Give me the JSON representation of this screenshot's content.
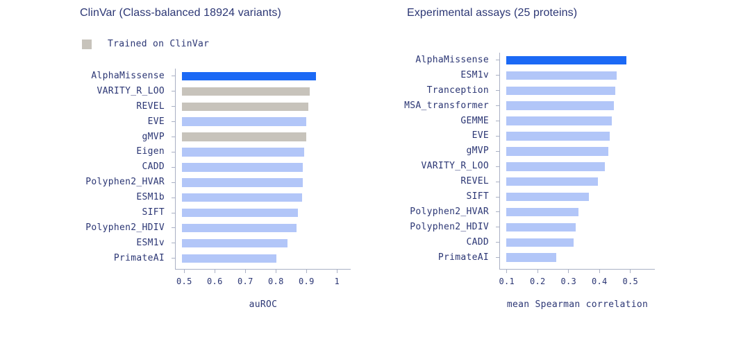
{
  "colors": {
    "accent_blue": "#1b69f5",
    "light_blue": "#b2c6f8",
    "trained_gray": "#c7c3bb",
    "text_navy": "#2b3674",
    "axis_line": "#a9b0c4",
    "background": "#ffffff"
  },
  "chart_data": [
    {
      "type": "bar",
      "orientation": "horizontal",
      "title": "ClinVar (Class-balanced 18924 variants)",
      "legend": [
        {
          "label": "Trained on ClinVar",
          "color_role": "trained"
        }
      ],
      "xlabel": "auROC",
      "xlim": [
        0.49,
        1.05
      ],
      "grid": false,
      "xticks": [
        0.5,
        0.6,
        0.7,
        0.8,
        0.9,
        1.0
      ],
      "xtick_labels": [
        "0.5",
        "0.6",
        "0.7",
        "0.8",
        "0.9",
        "1"
      ],
      "categories": [
        "AlphaMissense",
        "VARITY_R_LOO",
        "REVEL",
        "EVE",
        "gMVP",
        "Eigen",
        "CADD",
        "Polyphen2_HVAR",
        "ESM1b",
        "SIFT",
        "Polyphen2_HDIV",
        "ESM1v",
        "PrimateAI"
      ],
      "values": [
        0.93,
        0.911,
        0.905,
        0.899,
        0.899,
        0.892,
        0.888,
        0.888,
        0.886,
        0.873,
        0.868,
        0.837,
        0.801
      ],
      "bar_roles": [
        "highlight",
        "trained",
        "trained",
        "default",
        "trained",
        "default",
        "default",
        "default",
        "default",
        "default",
        "default",
        "default",
        "default"
      ]
    },
    {
      "type": "bar",
      "orientation": "horizontal",
      "title": "Experimental assays (25 proteins)",
      "legend": [],
      "xlabel": "mean Spearman correlation",
      "xlim": [
        0.1,
        0.58
      ],
      "grid": false,
      "xticks": [
        0.1,
        0.2,
        0.3,
        0.4,
        0.5
      ],
      "xtick_labels": [
        "0.1",
        "0.2",
        "0.3",
        "0.4",
        "0.5"
      ],
      "categories": [
        "AlphaMissense",
        "ESM1v",
        "Tranception",
        "MSA_transformer",
        "GEMME",
        "EVE",
        "gMVP",
        "VARITY_R_LOO",
        "REVEL",
        "SIFT",
        "Polyphen2_HVAR",
        "Polyphen2_HDIV",
        "CADD",
        "PrimateAI"
      ],
      "values": [
        0.486,
        0.455,
        0.451,
        0.446,
        0.439,
        0.433,
        0.428,
        0.418,
        0.395,
        0.366,
        0.333,
        0.322,
        0.316,
        0.259
      ],
      "bar_roles": [
        "highlight",
        "default",
        "default",
        "default",
        "default",
        "default",
        "default",
        "default",
        "default",
        "default",
        "default",
        "default",
        "default",
        "default"
      ]
    }
  ]
}
